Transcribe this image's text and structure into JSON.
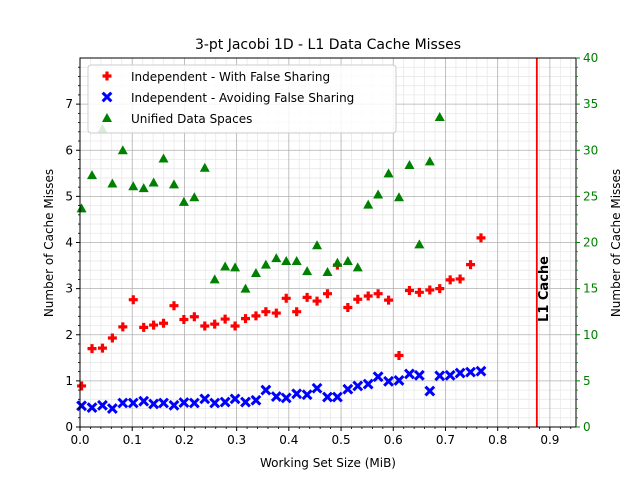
{
  "chart_data": {
    "type": "scatter",
    "title": "3-pt Jacobi 1D - L1 Data Cache Misses",
    "xlabel": "Working Set Size (MiB)",
    "ylabel_left": "Number of Cache Misses",
    "ylabel_right": "Number of Cache Misses",
    "xlim": [
      0.0,
      0.95
    ],
    "ylim_left": [
      0,
      8
    ],
    "ylim_right": [
      0,
      40
    ],
    "x_ticks": [
      "0.0",
      "0.1",
      "0.2",
      "0.3",
      "0.4",
      "0.5",
      "0.6",
      "0.7",
      "0.8",
      "0.9"
    ],
    "x_tick_values": [
      0.0,
      0.1,
      0.2,
      0.3,
      0.4,
      0.5,
      0.6,
      0.7,
      0.8,
      0.9
    ],
    "y_ticks_left": [
      "0",
      "1",
      "2",
      "3",
      "4",
      "5",
      "6",
      "7"
    ],
    "y_tick_values_left": [
      0,
      1,
      2,
      3,
      4,
      5,
      6,
      7
    ],
    "y_ticks_right": [
      "0",
      "5",
      "10",
      "15",
      "20",
      "25",
      "30",
      "35",
      "40"
    ],
    "y_tick_values_right": [
      0,
      5,
      10,
      15,
      20,
      25,
      30,
      35,
      40
    ],
    "grid": true,
    "legend_position": "top-left",
    "vline": {
      "x": 0.875,
      "label": "L1 Cache",
      "color": "#ff0000"
    },
    "right_axis_color": "#008000",
    "series": [
      {
        "name": "Independent - With False Sharing",
        "axis": "left",
        "marker": "plus",
        "color": "#ff0000",
        "x": [
          0.003,
          0.023,
          0.043,
          0.062,
          0.082,
          0.102,
          0.122,
          0.141,
          0.16,
          0.18,
          0.199,
          0.219,
          0.239,
          0.258,
          0.278,
          0.297,
          0.317,
          0.337,
          0.356,
          0.376,
          0.395,
          0.415,
          0.435,
          0.454,
          0.474,
          0.493,
          0.513,
          0.532,
          0.552,
          0.571,
          0.591,
          0.611,
          0.631,
          0.65,
          0.67,
          0.689,
          0.709,
          0.728,
          0.748,
          0.768
        ],
        "y": [
          0.89,
          1.7,
          1.71,
          1.93,
          2.17,
          2.76,
          2.16,
          2.21,
          2.25,
          2.63,
          2.33,
          2.39,
          2.19,
          2.23,
          2.34,
          2.19,
          2.35,
          2.41,
          2.5,
          2.47,
          2.79,
          2.5,
          2.81,
          2.73,
          2.89,
          3.51,
          2.59,
          2.77,
          2.84,
          2.89,
          2.75,
          1.55,
          2.96,
          2.92,
          2.97,
          3.0,
          3.19,
          3.21,
          3.52,
          4.1
        ]
      },
      {
        "name": "Independent - Avoiding False Sharing",
        "axis": "left",
        "marker": "x",
        "color": "#0000ff",
        "x": [
          0.003,
          0.023,
          0.043,
          0.062,
          0.082,
          0.102,
          0.122,
          0.141,
          0.16,
          0.18,
          0.199,
          0.219,
          0.239,
          0.258,
          0.278,
          0.297,
          0.317,
          0.337,
          0.356,
          0.376,
          0.395,
          0.415,
          0.435,
          0.454,
          0.474,
          0.493,
          0.513,
          0.532,
          0.552,
          0.571,
          0.591,
          0.611,
          0.631,
          0.65,
          0.67,
          0.689,
          0.709,
          0.728,
          0.748,
          0.768
        ],
        "y": [
          0.46,
          0.42,
          0.47,
          0.4,
          0.52,
          0.52,
          0.56,
          0.5,
          0.52,
          0.47,
          0.53,
          0.52,
          0.61,
          0.52,
          0.54,
          0.61,
          0.54,
          0.58,
          0.8,
          0.66,
          0.63,
          0.72,
          0.7,
          0.84,
          0.65,
          0.65,
          0.82,
          0.89,
          0.93,
          1.09,
          0.99,
          1.01,
          1.15,
          1.12,
          0.78,
          1.11,
          1.12,
          1.17,
          1.19,
          1.21
        ]
      },
      {
        "name": "Unified Data Spaces",
        "axis": "right",
        "marker": "triangle",
        "color": "#008000",
        "x": [
          0.003,
          0.023,
          0.043,
          0.062,
          0.082,
          0.102,
          0.122,
          0.141,
          0.16,
          0.18,
          0.199,
          0.219,
          0.239,
          0.258,
          0.278,
          0.297,
          0.317,
          0.337,
          0.356,
          0.376,
          0.395,
          0.415,
          0.435,
          0.454,
          0.474,
          0.493,
          0.513,
          0.532,
          0.552,
          0.571,
          0.591,
          0.611,
          0.631,
          0.65,
          0.67,
          0.689
        ],
        "y": [
          23.7,
          27.3,
          32.3,
          26.4,
          30.0,
          26.1,
          25.9,
          26.5,
          29.1,
          26.3,
          24.4,
          24.9,
          28.1,
          16.0,
          17.4,
          17.3,
          15.0,
          16.7,
          17.6,
          18.3,
          18.0,
          18.0,
          16.9,
          19.7,
          16.8,
          17.8,
          18.0,
          17.3,
          24.1,
          25.2,
          27.5,
          24.9,
          28.4,
          19.8,
          28.8,
          33.6
        ]
      }
    ]
  }
}
